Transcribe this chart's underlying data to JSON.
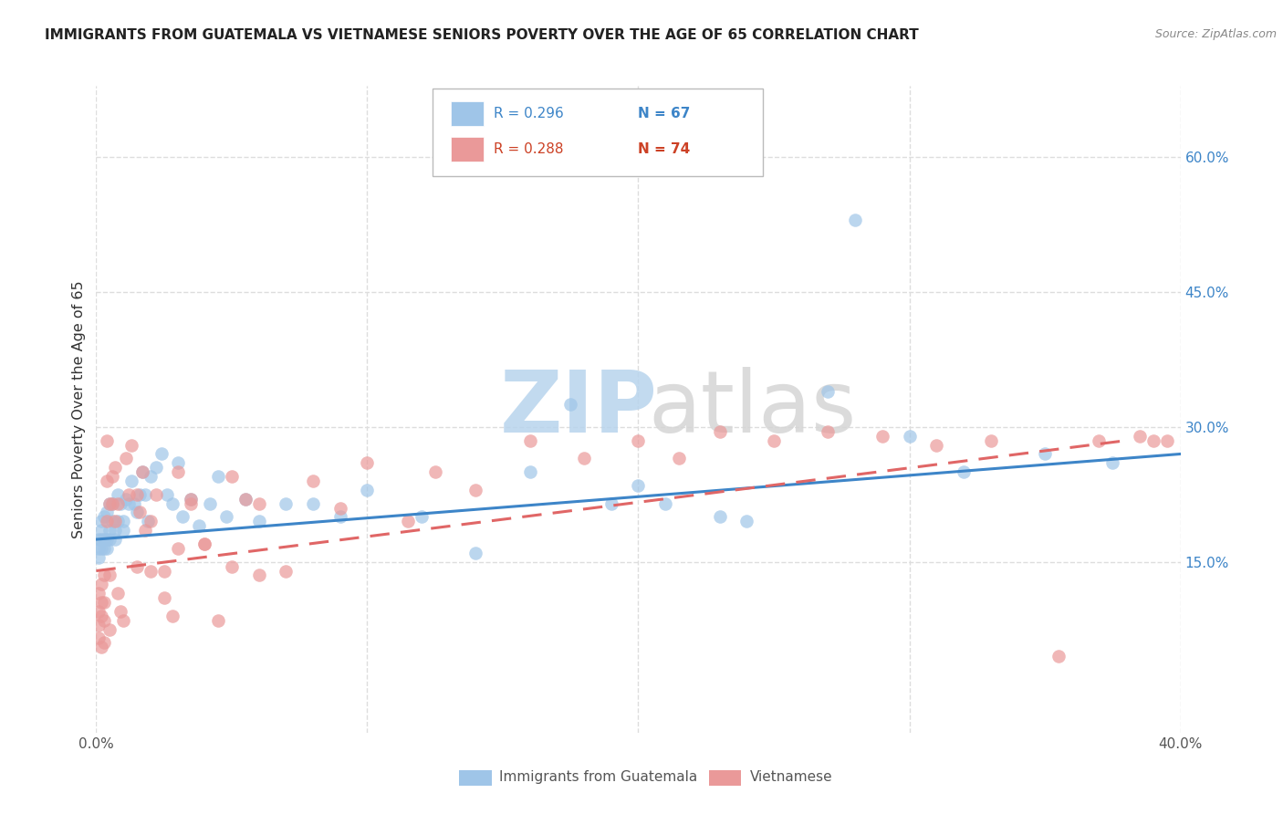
{
  "title": "IMMIGRANTS FROM GUATEMALA VS VIETNAMESE SENIORS POVERTY OVER THE AGE OF 65 CORRELATION CHART",
  "source": "Source: ZipAtlas.com",
  "ylabel": "Seniors Poverty Over the Age of 65",
  "xlim": [
    0.0,
    0.4
  ],
  "ylim": [
    -0.04,
    0.68
  ],
  "yticks_right": [
    0.15,
    0.3,
    0.45,
    0.6
  ],
  "ytick_right_labels": [
    "15.0%",
    "30.0%",
    "45.0%",
    "60.0%"
  ],
  "legend_r1": "R = 0.296",
  "legend_n1": "N = 67",
  "legend_r2": "R = 0.288",
  "legend_n2": "N = 74",
  "color_blue": "#9fc5e8",
  "color_pink": "#ea9999",
  "color_blue_dark": "#3d85c8",
  "color_pink_dark": "#cc4125",
  "color_trend_blue": "#3d85c8",
  "color_trend_pink": "#e06666",
  "series1_label": "Immigrants from Guatemala",
  "series2_label": "Vietnamese",
  "guatemala_x": [
    0.001,
    0.001,
    0.001,
    0.002,
    0.002,
    0.002,
    0.002,
    0.003,
    0.003,
    0.003,
    0.004,
    0.004,
    0.004,
    0.005,
    0.005,
    0.005,
    0.006,
    0.006,
    0.007,
    0.007,
    0.008,
    0.008,
    0.009,
    0.01,
    0.01,
    0.011,
    0.012,
    0.013,
    0.014,
    0.015,
    0.016,
    0.017,
    0.018,
    0.019,
    0.02,
    0.022,
    0.024,
    0.026,
    0.028,
    0.03,
    0.032,
    0.035,
    0.038,
    0.042,
    0.045,
    0.048,
    0.055,
    0.06,
    0.07,
    0.08,
    0.09,
    0.1,
    0.12,
    0.14,
    0.16,
    0.19,
    0.21,
    0.24,
    0.27,
    0.3,
    0.32,
    0.35,
    0.375,
    0.28,
    0.175,
    0.2,
    0.23
  ],
  "guatemala_y": [
    0.175,
    0.165,
    0.155,
    0.195,
    0.175,
    0.185,
    0.165,
    0.2,
    0.175,
    0.165,
    0.205,
    0.175,
    0.165,
    0.215,
    0.185,
    0.175,
    0.215,
    0.195,
    0.185,
    0.175,
    0.225,
    0.195,
    0.215,
    0.195,
    0.185,
    0.22,
    0.215,
    0.24,
    0.215,
    0.205,
    0.225,
    0.25,
    0.225,
    0.195,
    0.245,
    0.255,
    0.27,
    0.225,
    0.215,
    0.26,
    0.2,
    0.22,
    0.19,
    0.215,
    0.245,
    0.2,
    0.22,
    0.195,
    0.215,
    0.215,
    0.2,
    0.23,
    0.2,
    0.16,
    0.25,
    0.215,
    0.215,
    0.195,
    0.34,
    0.29,
    0.25,
    0.27,
    0.26,
    0.53,
    0.325,
    0.235,
    0.2
  ],
  "vietnamese_x": [
    0.001,
    0.001,
    0.001,
    0.001,
    0.002,
    0.002,
    0.002,
    0.002,
    0.003,
    0.003,
    0.003,
    0.003,
    0.004,
    0.004,
    0.004,
    0.005,
    0.005,
    0.005,
    0.006,
    0.006,
    0.007,
    0.007,
    0.008,
    0.008,
    0.009,
    0.01,
    0.011,
    0.012,
    0.013,
    0.015,
    0.016,
    0.017,
    0.018,
    0.02,
    0.022,
    0.025,
    0.028,
    0.03,
    0.035,
    0.04,
    0.045,
    0.05,
    0.055,
    0.06,
    0.07,
    0.08,
    0.09,
    0.1,
    0.115,
    0.125,
    0.14,
    0.16,
    0.18,
    0.2,
    0.215,
    0.23,
    0.25,
    0.27,
    0.29,
    0.31,
    0.33,
    0.355,
    0.37,
    0.385,
    0.39,
    0.395,
    0.015,
    0.02,
    0.025,
    0.03,
    0.035,
    0.04,
    0.05,
    0.06
  ],
  "vietnamese_y": [
    0.115,
    0.095,
    0.08,
    0.065,
    0.125,
    0.105,
    0.09,
    0.055,
    0.135,
    0.105,
    0.085,
    0.06,
    0.285,
    0.24,
    0.195,
    0.215,
    0.135,
    0.075,
    0.245,
    0.215,
    0.255,
    0.195,
    0.215,
    0.115,
    0.095,
    0.085,
    0.265,
    0.225,
    0.28,
    0.225,
    0.205,
    0.25,
    0.185,
    0.195,
    0.225,
    0.11,
    0.09,
    0.165,
    0.215,
    0.17,
    0.085,
    0.245,
    0.22,
    0.215,
    0.14,
    0.24,
    0.21,
    0.26,
    0.195,
    0.25,
    0.23,
    0.285,
    0.265,
    0.285,
    0.265,
    0.295,
    0.285,
    0.295,
    0.29,
    0.28,
    0.285,
    0.045,
    0.285,
    0.29,
    0.285,
    0.285,
    0.145,
    0.14,
    0.14,
    0.25,
    0.22,
    0.17,
    0.145,
    0.135
  ],
  "background_color": "#ffffff",
  "grid_color": "#dddddd"
}
